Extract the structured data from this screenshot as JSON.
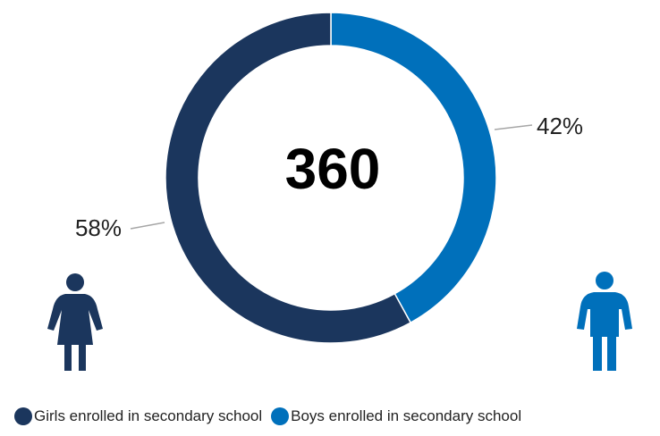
{
  "chart_data": {
    "type": "pie",
    "subtype": "donut",
    "center_label": "360",
    "series": [
      {
        "name": "Girls enrolled in secondary school",
        "value": 58,
        "label": "58%",
        "color": "#1b365d"
      },
      {
        "name": "Boys enrolled in secondary school",
        "value": 42,
        "label": "42%",
        "color": "#0070bb"
      }
    ],
    "legend_position": "bottom",
    "icons": [
      "girl-icon",
      "boy-icon"
    ]
  }
}
